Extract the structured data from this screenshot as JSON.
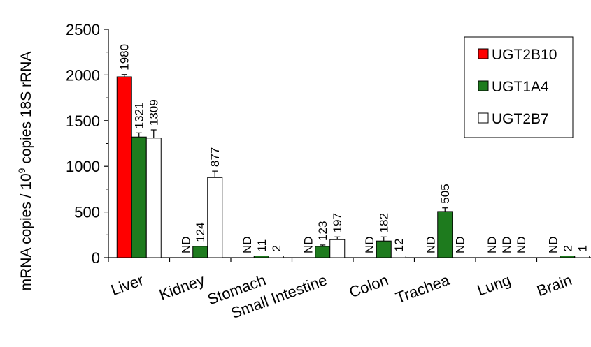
{
  "chart_data": {
    "type": "bar",
    "categories": [
      "Liver",
      "Kidney",
      "Stomach",
      "Small Intestine",
      "Colon",
      "Trachea",
      "Lung",
      "Brain"
    ],
    "series": [
      {
        "name": "UGT2B10",
        "color": "#ff0000",
        "values": [
          1980,
          null,
          null,
          null,
          null,
          null,
          null,
          null
        ],
        "labels": [
          "1980",
          "ND",
          "ND",
          "ND",
          "ND",
          "ND",
          "ND",
          "ND"
        ],
        "errors": [
          25,
          null,
          null,
          null,
          null,
          null,
          null,
          null
        ]
      },
      {
        "name": "UGT1A4",
        "color": "#1e7b1e",
        "values": [
          1321,
          124,
          11,
          123,
          182,
          505,
          null,
          2
        ],
        "labels": [
          "1321",
          "124",
          "11",
          "123",
          "182",
          "505",
          "ND",
          "2"
        ],
        "errors": [
          45,
          0,
          0,
          15,
          45,
          40,
          null,
          0
        ]
      },
      {
        "name": "UGT2B7",
        "color": "#ffffff",
        "values": [
          1309,
          877,
          2,
          197,
          12,
          null,
          null,
          1
        ],
        "labels": [
          "1309",
          "877",
          "2",
          "197",
          "12",
          "ND",
          "ND",
          "1"
        ],
        "errors": [
          90,
          70,
          0,
          30,
          0,
          null,
          null,
          0
        ]
      }
    ],
    "y_ticks": [
      "0",
      "500",
      "1000",
      "1500",
      "2000",
      "2500"
    ],
    "ylim": [
      0,
      2500
    ],
    "ylabel": {
      "main": "mRNA copies / 10",
      "superscript": "9",
      "rest": " copies 18S rRNA"
    },
    "grid": false,
    "legend_position": "top-right"
  }
}
